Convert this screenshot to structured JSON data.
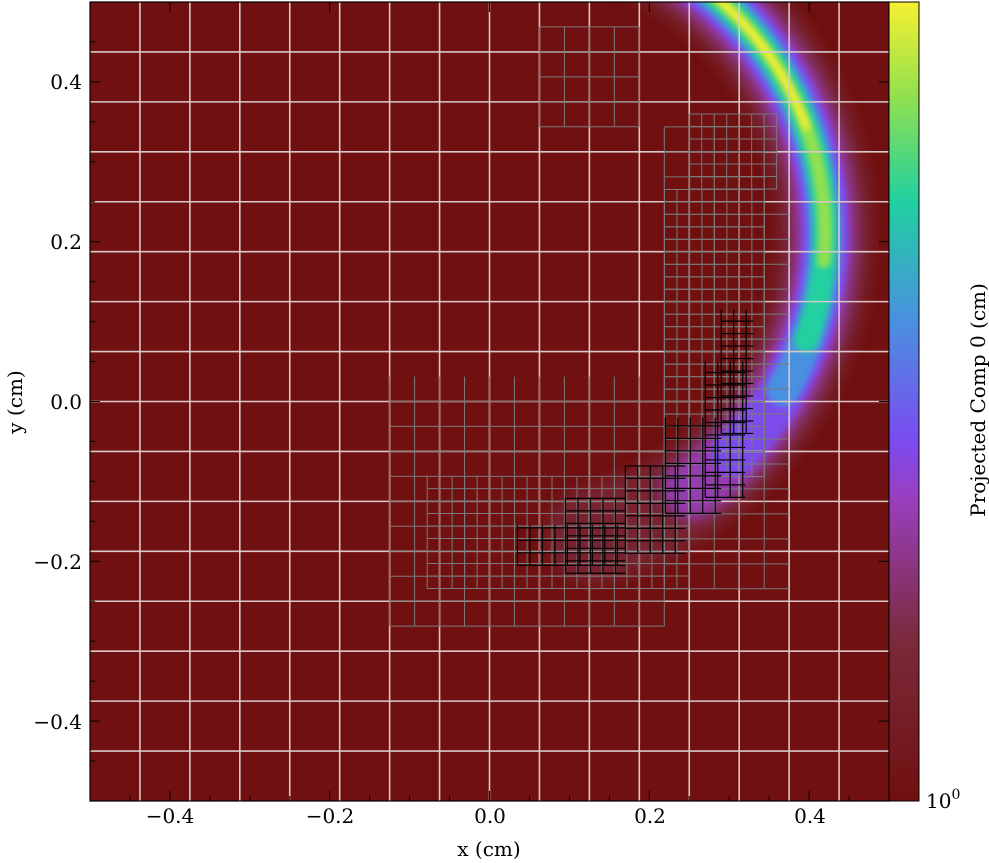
{
  "chart_data": {
    "type": "heatmap",
    "title": "",
    "xlabel": "x  (cm)",
    "ylabel": "y  (cm)",
    "xlim": [
      -0.5,
      0.5
    ],
    "ylim": [
      -0.5,
      0.5
    ],
    "x_ticks": [
      -0.4,
      -0.2,
      0.0,
      0.2,
      0.4
    ],
    "y_ticks": [
      -0.4,
      -0.2,
      0.0,
      0.2,
      0.4
    ],
    "x_tick_labels": [
      "−0.4",
      "−0.2",
      "0.0",
      "0.2",
      "0.4"
    ],
    "y_tick_labels": [
      "−0.4",
      "−0.2",
      "0.0",
      "0.2",
      "0.4"
    ],
    "colorbar": {
      "label": "Projected Comp 0  (cm)",
      "scale": "log",
      "tick_label_base": "10",
      "tick_label_exp": "0",
      "colormap": "viridis-on-darkred",
      "colors": [
        "#701010",
        "#7a2a3a",
        "#9a3fc0",
        "#7b4bf0",
        "#4a90e0",
        "#20d0a0",
        "#90e050",
        "#f5f030"
      ]
    },
    "background_color": "#701010",
    "amr_levels": {
      "level0_cell": 0.0625,
      "level0_color": "#d8c8c8",
      "level1_color": "#7a7a7a",
      "level2_color": "#000000"
    },
    "arc": {
      "center": [
        0.03,
        0.21
      ],
      "radius": 0.39,
      "start_angle_deg": 60,
      "end_angle_deg": 265,
      "peak_angle_deg": 130
    }
  }
}
